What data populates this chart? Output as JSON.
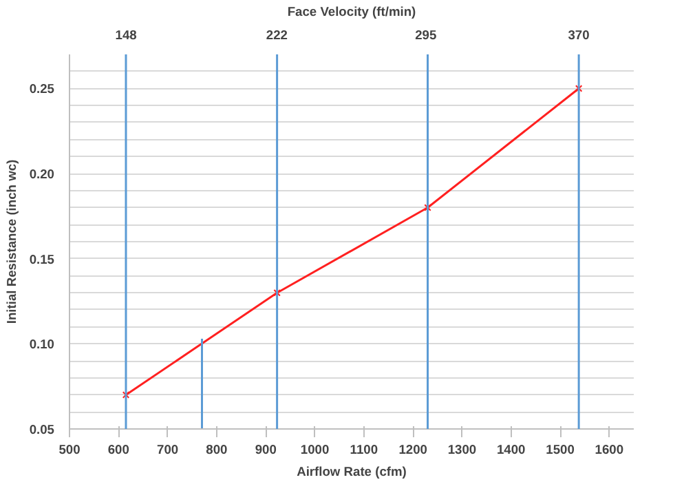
{
  "chart_data": {
    "type": "line",
    "xlabel": "Airflow Rate (cfm)",
    "ylabel": "Initial Resistance (inch wc)",
    "x2label": "Face Velocity (ft/min)",
    "xlim": [
      500,
      1650
    ],
    "xticks": [
      500,
      600,
      700,
      800,
      900,
      1000,
      1100,
      1200,
      1300,
      1400,
      1500,
      1600
    ],
    "x2lim": [
      120.3,
      397
    ],
    "x2ticks": [
      148,
      222,
      295,
      370
    ],
    "ylim": [
      0.05,
      0.27
    ],
    "yticks": [
      {
        "value": 0.05,
        "label": "0.05"
      },
      {
        "value": 0.06,
        "label": null
      },
      {
        "value": 0.07,
        "label": null
      },
      {
        "value": 0.08,
        "label": null
      },
      {
        "value": 0.09,
        "label": null
      },
      {
        "value": 0.1,
        "label": "0.10"
      },
      {
        "value": 0.11,
        "label": null
      },
      {
        "value": 0.12,
        "label": null
      },
      {
        "value": 0.13,
        "label": null
      },
      {
        "value": 0.14,
        "label": null
      },
      {
        "value": 0.15,
        "label": "0.15"
      },
      {
        "value": 0.16,
        "label": null
      },
      {
        "value": 0.17,
        "label": null
      },
      {
        "value": 0.18,
        "label": null
      },
      {
        "value": 0.19,
        "label": null
      },
      {
        "value": 0.2,
        "label": "0.20"
      },
      {
        "value": 0.21,
        "label": null
      },
      {
        "value": 0.22,
        "label": null
      },
      {
        "value": 0.23,
        "label": null
      },
      {
        "value": 0.24,
        "label": null
      },
      {
        "value": 0.25,
        "label": "0.25"
      },
      {
        "value": 0.26,
        "label": null
      }
    ],
    "grid": "y",
    "series": [
      {
        "x": [
          615,
          923,
          1230,
          1538
        ],
        "values": [
          0.07,
          0.13,
          0.18,
          0.25
        ],
        "color": "#ff2020",
        "marker": "cross",
        "line_style": "solid"
      },
      {
        "x": [
          770,
          770
        ],
        "values": [
          0.05,
          0.103
        ],
        "color": "#5b9bd5",
        "marker": "none"
      }
    ],
    "ref_lines": [
      {
        "axis": "x",
        "value": 615,
        "color": "#5b9bd5"
      },
      {
        "axis": "x",
        "value": 923,
        "color": "#5b9bd5"
      },
      {
        "axis": "x",
        "value": 1230,
        "color": "#5b9bd5"
      },
      {
        "axis": "x",
        "value": 1538,
        "color": "#5b9bd5"
      }
    ]
  }
}
